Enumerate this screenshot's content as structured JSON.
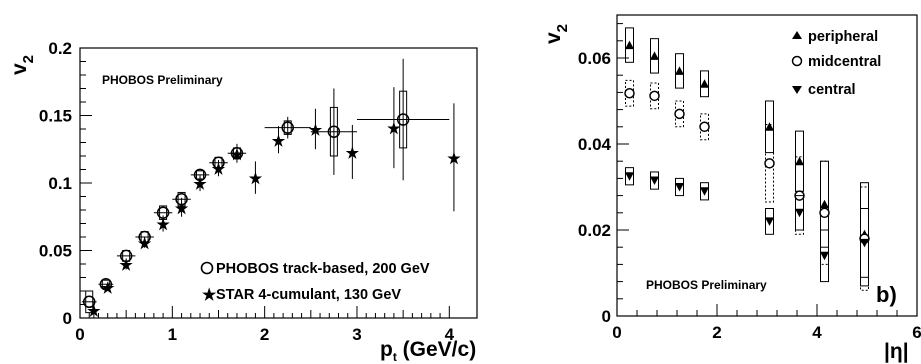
{
  "chart_data": [
    {
      "type": "scatter",
      "ylabel_main": "v",
      "ylabel_sub": "2",
      "xlabel_main": "p",
      "xlabel_sub": "t",
      "xlabel_rest": " (GeV/c)",
      "annotation": "PHOBOS Preliminary",
      "xlim": [
        0,
        4.3
      ],
      "ylim": [
        0,
        0.2
      ],
      "xticks": [
        0,
        1,
        2,
        3,
        4
      ],
      "yticks": [
        0,
        0.05,
        0.1,
        0.15,
        0.2
      ],
      "xtick_labels": [
        "0",
        "1",
        "2",
        "3",
        "4"
      ],
      "ytick_labels": [
        "0",
        "0.05",
        "0.1",
        "0.15",
        "0.2"
      ],
      "legend_position": "bottom-right",
      "series": [
        {
          "name": "PHOBOS track-based, 200 GeV",
          "marker": "open-circle",
          "x": [
            0.1,
            0.28,
            0.5,
            0.7,
            0.9,
            1.1,
            1.3,
            1.5,
            1.7,
            2.25,
            2.75,
            3.5
          ],
          "y": [
            0.012,
            0.025,
            0.046,
            0.06,
            0.078,
            0.088,
            0.106,
            0.115,
            0.122,
            0.141,
            0.138,
            0.147
          ],
          "xerr": [
            0.08,
            0.08,
            0.1,
            0.1,
            0.1,
            0.1,
            0.1,
            0.1,
            0.1,
            0.25,
            0.25,
            0.5
          ],
          "yerr": [
            0,
            0,
            0,
            0,
            0,
            0,
            0,
            0,
            0,
            0.008,
            0.032,
            0.045
          ],
          "sys": [
            0.008,
            0.003,
            0.004,
            0.004,
            0.005,
            0.005,
            0.003,
            0.004,
            0.004,
            0.005,
            0.018,
            0.021
          ]
        },
        {
          "name": "STAR 4-cumulant, 130 GeV",
          "marker": "star",
          "x": [
            0.15,
            0.3,
            0.5,
            0.7,
            0.9,
            1.1,
            1.3,
            1.5,
            1.7,
            1.9,
            2.15,
            2.55,
            2.95,
            3.4,
            4.05
          ],
          "y": [
            0.006,
            0.023,
            0.04,
            0.056,
            0.07,
            0.082,
            0.1,
            0.111,
            0.122,
            0.104,
            0.132,
            0.14,
            0.123,
            0.141,
            0.119
          ],
          "yerr": [
            0.006,
            0.003,
            0.004,
            0.004,
            0.006,
            0.007,
            0.006,
            0.006,
            0.007,
            0.012,
            0.01,
            0.015,
            0.02,
            0.03,
            0.04
          ]
        }
      ]
    },
    {
      "type": "scatter",
      "ylabel_main": "v",
      "ylabel_sub": "2",
      "xlabel": "|η|",
      "annotation": "PHOBOS Preliminary",
      "panel_label": "b)",
      "xlim": [
        0,
        6
      ],
      "ylim": [
        0,
        0.07
      ],
      "xticks": [
        0,
        2,
        4,
        6
      ],
      "yticks": [
        0,
        0.02,
        0.04,
        0.06
      ],
      "xtick_labels": [
        "0",
        "2",
        "4",
        "6"
      ],
      "ytick_labels": [
        "0",
        "0.02",
        "0.04",
        "0.06"
      ],
      "legend_position": "top-right",
      "series": [
        {
          "name": "peripheral",
          "marker": "triangle-up",
          "x": [
            0.25,
            0.75,
            1.25,
            1.75,
            3.05,
            3.65,
            4.15,
            4.95
          ],
          "y": [
            0.063,
            0.0605,
            0.057,
            0.054,
            0.044,
            0.036,
            0.026,
            0.019
          ],
          "sys": [
            0.004,
            0.004,
            0.004,
            0.003,
            0.006,
            0.007,
            0.01,
            0.012
          ]
        },
        {
          "name": "midcentral",
          "marker": "open-circle",
          "x": [
            0.25,
            0.75,
            1.25,
            1.75,
            3.05,
            3.65,
            4.15,
            4.95
          ],
          "y": [
            0.0518,
            0.0512,
            0.047,
            0.044,
            0.0355,
            0.028,
            0.024,
            0.018
          ],
          "sys": [
            0.003,
            0.003,
            0.003,
            0.003,
            0.009,
            0.009,
            0.012,
            0.012
          ]
        },
        {
          "name": "central",
          "marker": "triangle-down",
          "x": [
            0.25,
            0.75,
            1.25,
            1.75,
            3.05,
            3.65,
            4.15,
            4.95
          ],
          "y": [
            0.0325,
            0.0315,
            0.03,
            0.029,
            0.022,
            0.024,
            0.014,
            0.017
          ],
          "sys": [
            0.002,
            0.002,
            0.002,
            0.002,
            0.003,
            0.004,
            0.006,
            0.008
          ]
        }
      ]
    }
  ]
}
